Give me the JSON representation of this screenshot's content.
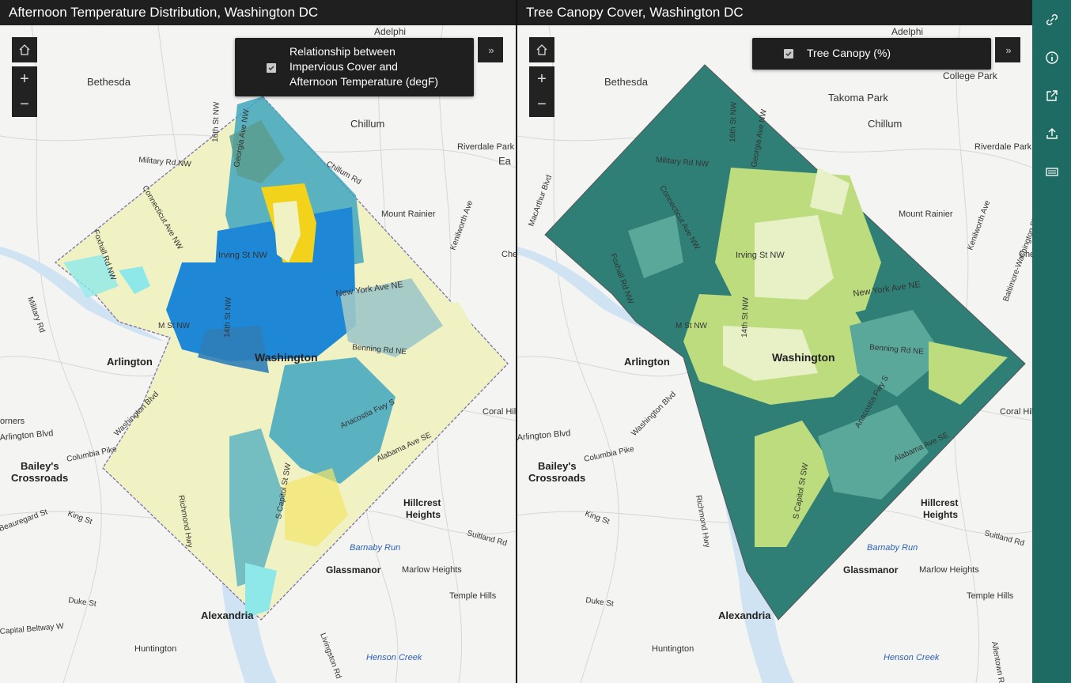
{
  "left_panel": {
    "title": "Afternoon Temperature Distribution, Washington DC",
    "legend_line1": "Relationship between",
    "legend_line2": "Impervious Cover and",
    "legend_line3": "Afternoon Temperature (degF)",
    "legend_checked": true
  },
  "right_panel": {
    "title": "Tree Canopy Cover, Washington DC",
    "legend_label": "Tree Canopy (%)",
    "legend_checked": true
  },
  "controls": {
    "zoom_in": "+",
    "zoom_out": "−",
    "expand": "»"
  },
  "map_labels": {
    "adelphi": "Adelphi",
    "bethesda": "Bethesda",
    "college_park": "College Park",
    "takoma_park": "Takoma Park",
    "chillum": "Chillum",
    "riverdale_park": "Riverdale Park",
    "mount_rainier": "Mount Rainier",
    "arlington": "Arlington",
    "washington": "Washington",
    "baileys": "Bailey's",
    "crossroads": "Crossroads",
    "hillcrest": "Hillcrest",
    "heights": "Heights",
    "coral_hills": "Coral Hills",
    "glassmanor": "Glassmanor",
    "marlow_heights": "Marlow Heights",
    "temple_hills": "Temple Hills",
    "alexandria": "Alexandria",
    "huntington": "Huntington",
    "suitland_rd": "Suitland Rd",
    "military_rd_nw": "Military Rd NW",
    "connecticut_ave_nw": "Connecticut Ave NW",
    "foxhall_rd_nw": "Foxhall Rd NW",
    "sixteenth_st_nw": "16th St NW",
    "georgia_ave_nw": "Georgia Ave NW",
    "fourteenth_st_nw": "14th St NW",
    "irving_st_nw": "Irving St NW",
    "new_york_ave_ne": "New York Ave NE",
    "m_st_nw": "M St NW",
    "benning_rd_ne": "Benning Rd NE",
    "anacostia_fwy_s": "Anacostia Fwy S",
    "alabama_ave_se": "Alabama Ave SE",
    "s_capitol_st_sw": "S Capitol St SW",
    "chillum_rd": "Chillum Rd",
    "kenilworth_ave": "Kenilworth Ave",
    "baltimore_washington_pkwy": "Baltimore-Washington Pkwy",
    "arlington_blvd": "Arlington Blvd",
    "washington_blvd": "Washington Blvd",
    "columbia_pike": "Columbia Pike",
    "richmond_hwy": "Richmond Hwy",
    "beauregard_st": "Beauregard St",
    "king_st": "King St",
    "duke_st": "Duke St",
    "capital_beltway_w": "Capital Beltway W",
    "military_rd": "Military Rd",
    "barnaby_run": "Barnaby Run",
    "henson_creek": "Henson Creek",
    "macarthur_blvd": "MacArthur Blvd",
    "livingston_rd": "Livingston Rd",
    "allentown_rd": "Allentown Rd",
    "arlington_blvd_short": "Arlington Blvd",
    "irving_st_nw_short": "Irving St NW",
    "corners": "orners",
    "e_suffix": "Ea",
    "che": "Che"
  },
  "colors": {
    "header_bg": "#1f1f1f",
    "sidebar_bg": "#1d6b62",
    "temp_hot": "#f2d21a",
    "temp_warm": "#1e88d6",
    "temp_mid": "#3fa6bf",
    "temp_cool": "#f1f2c4",
    "canopy_high": "#2f7f77",
    "canopy_mid": "#5aa89a",
    "canopy_low": "#bcdc7e",
    "canopy_lowest": "#e8f0c6",
    "water": "#cfe3f2"
  },
  "sidebar_icons": [
    "link-icon",
    "info-icon",
    "share-icon",
    "export-icon",
    "keyboard-icon"
  ]
}
